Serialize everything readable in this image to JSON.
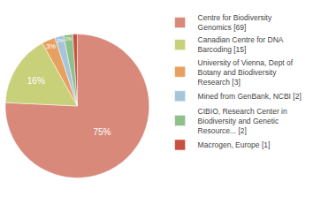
{
  "chart_data": {
    "type": "pie",
    "categories": [
      "Centre for Biodiversity\nGenomics [69]",
      "Canadian Centre for DNA\nBarcoding [15]",
      "University of Vienna, Dept of\nBotany and Biodiversity\nResearch [3]",
      "Mined from GenBank, NCBI [2]",
      "CIBIO, Research Center in\nBiodiversity and Genetic\nResource... [2]",
      "Macrogen, Europe [1]"
    ],
    "values": [
      75,
      16,
      3,
      2,
      2,
      1
    ],
    "value_labels": [
      "75%",
      "16%",
      "3%",
      "2%",
      "2%",
      null
    ],
    "colors": [
      "#d8897a",
      "#c8d07a",
      "#e8a060",
      "#a8c4d8",
      "#8ec08a",
      "#c85040"
    ],
    "data_labels": true,
    "legend": "right"
  }
}
